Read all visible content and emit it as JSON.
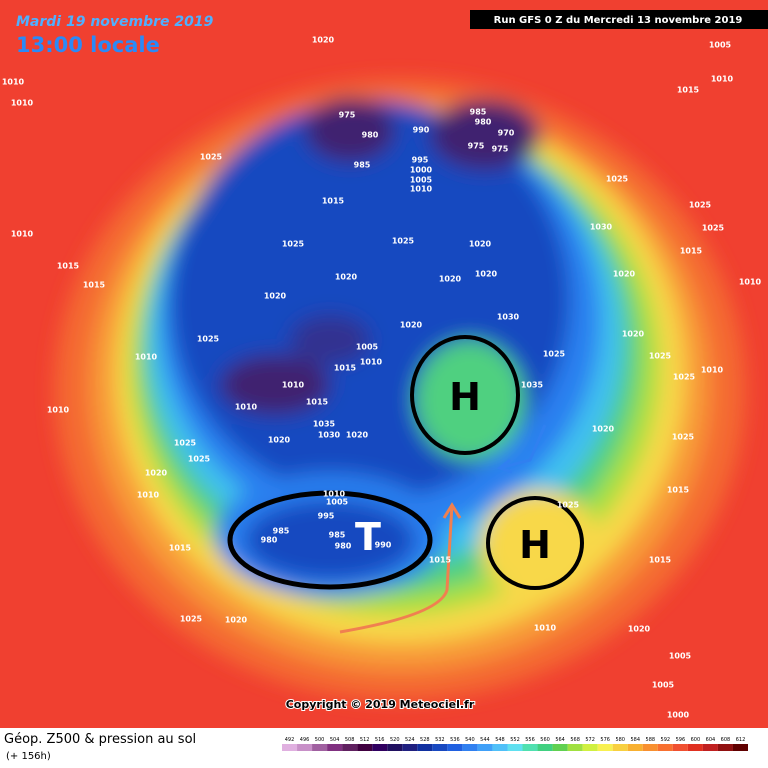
{
  "header": {
    "date": "Mardi 19 novembre 2019",
    "time": "13:00 locale",
    "run": "Run GFS 0 Z du Mercredi 13 novembre 2019"
  },
  "footer": {
    "title": "Géop. Z500 & pression au sol",
    "lead": "(+ 156h)",
    "copyright": "Copyright © 2019 Meteociel.fr"
  },
  "annotations": {
    "low": "T",
    "high_north": "H",
    "high_east": "H"
  },
  "isobar_labels": [
    "1020",
    "1005",
    "1010",
    "1010",
    "1010",
    "1015",
    "1025",
    "975",
    "980",
    "985",
    "980",
    "970",
    "975",
    "975",
    "990",
    "985",
    "995",
    "1000",
    "1005",
    "1010",
    "1025",
    "1015",
    "1025",
    "1025",
    "1020",
    "1030",
    "1025",
    "1025",
    "1015",
    "1010",
    "1015",
    "1015",
    "1020",
    "1020",
    "1020",
    "1020",
    "1010",
    "1020",
    "1030",
    "1020",
    "1025",
    "1005",
    "1010",
    "1015",
    "1010",
    "1025",
    "1020",
    "1025",
    "1025",
    "1010",
    "1010",
    "1010",
    "1010",
    "1015",
    "1035",
    "1020",
    "1035",
    "1030",
    "1020",
    "1020",
    "1025",
    "1025",
    "1020",
    "1010",
    "1025",
    "1015",
    "1010",
    "1005",
    "995",
    "985",
    "980",
    "985",
    "980",
    "990",
    "1025",
    "1015",
    "1015",
    "1015",
    "1025",
    "1020",
    "1020",
    "1005",
    "1005",
    "1000",
    "1010"
  ],
  "scale": {
    "labels": [
      "492",
      "496",
      "500",
      "504",
      "508",
      "512",
      "516",
      "520",
      "524",
      "528",
      "532",
      "536",
      "540",
      "544",
      "548",
      "552",
      "556",
      "560",
      "564",
      "568",
      "572",
      "576",
      "580",
      "584",
      "588",
      "592",
      "596",
      "600",
      "604",
      "608",
      "612"
    ],
    "colors": [
      "#e0b0e0",
      "#c890c8",
      "#a060a0",
      "#803080",
      "#602060",
      "#400040",
      "#300060",
      "#201060",
      "#202080",
      "#1030a0",
      "#1848c0",
      "#2060e0",
      "#3080f0",
      "#40a0f8",
      "#50c0f8",
      "#60e0f0",
      "#50e0b0",
      "#40d080",
      "#60d050",
      "#a0e040",
      "#d0f040",
      "#f8f050",
      "#f8d040",
      "#f8b030",
      "#f89030",
      "#f87030",
      "#f05030",
      "#e03020",
      "#c02020",
      "#901010",
      "#600000"
    ]
  }
}
